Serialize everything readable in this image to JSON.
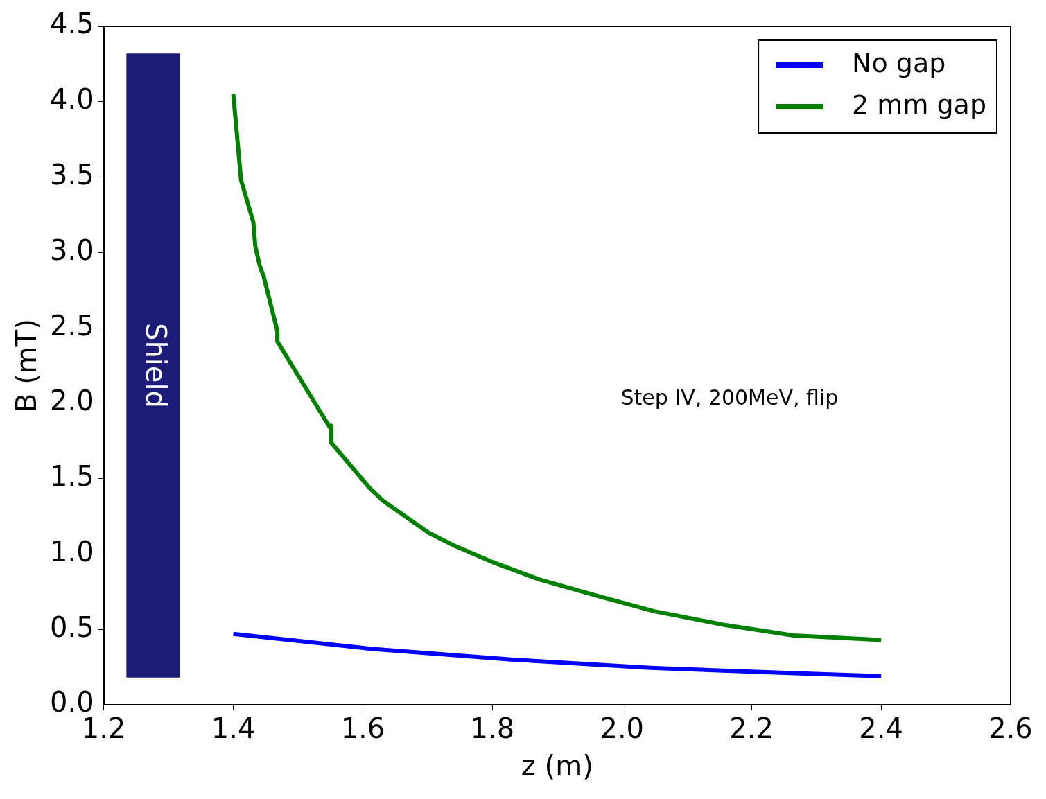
{
  "chart_data": {
    "type": "line",
    "xlabel": "z (m)",
    "ylabel": "B (mT)",
    "xlim": [
      1.2,
      2.6
    ],
    "xticks": [
      1.2,
      1.4,
      1.6,
      1.8,
      {
        "value": 2,
        "label": "2.0"
      },
      2.2,
      2.4,
      2.6
    ],
    "ylim": [
      0,
      4.5
    ],
    "yticks": [
      {
        "value": 0,
        "label": "0.0"
      },
      0.5,
      {
        "value": 1,
        "label": "1.0"
      },
      1.5,
      {
        "value": 2,
        "label": "2.0"
      },
      2.5,
      {
        "value": 3,
        "label": "3.0"
      },
      3.5,
      {
        "value": 4,
        "label": "4.0"
      },
      4.5
    ],
    "grid": false,
    "legend": "top right",
    "marker": "none",
    "line_style": "solid",
    "bands": [
      {
        "axis": "x",
        "from": 1.235,
        "to": 1.318,
        "label": "Shield",
        "color": "#1c1c78"
      }
    ],
    "annotations": [
      "Step IV, 200MeV, flip"
    ],
    "series": [
      {
        "name": "No gap",
        "color": "#0000ff",
        "x": [
          1.4,
          1.615,
          1.829,
          2.044,
          2.259,
          2.4
        ],
        "values": [
          0.47,
          0.37,
          0.3,
          0.245,
          0.21,
          0.19
        ]
      },
      {
        "name": "2 mm gap",
        "color": "#008000",
        "x": [
          1.4,
          1.412,
          1.431,
          1.434,
          1.441,
          1.447,
          1.468,
          1.468,
          1.549,
          1.551,
          1.551,
          1.61,
          1.632,
          1.702,
          1.739,
          1.798,
          1.873,
          1.964,
          2.05,
          2.158,
          2.265,
          2.4
        ],
        "values": [
          4.05,
          3.48,
          3.2,
          3.04,
          2.91,
          2.84,
          2.48,
          2.41,
          1.84,
          1.85,
          1.74,
          1.44,
          1.35,
          1.14,
          1.06,
          0.95,
          0.83,
          0.72,
          0.62,
          0.53,
          0.46,
          0.43
        ]
      }
    ]
  }
}
